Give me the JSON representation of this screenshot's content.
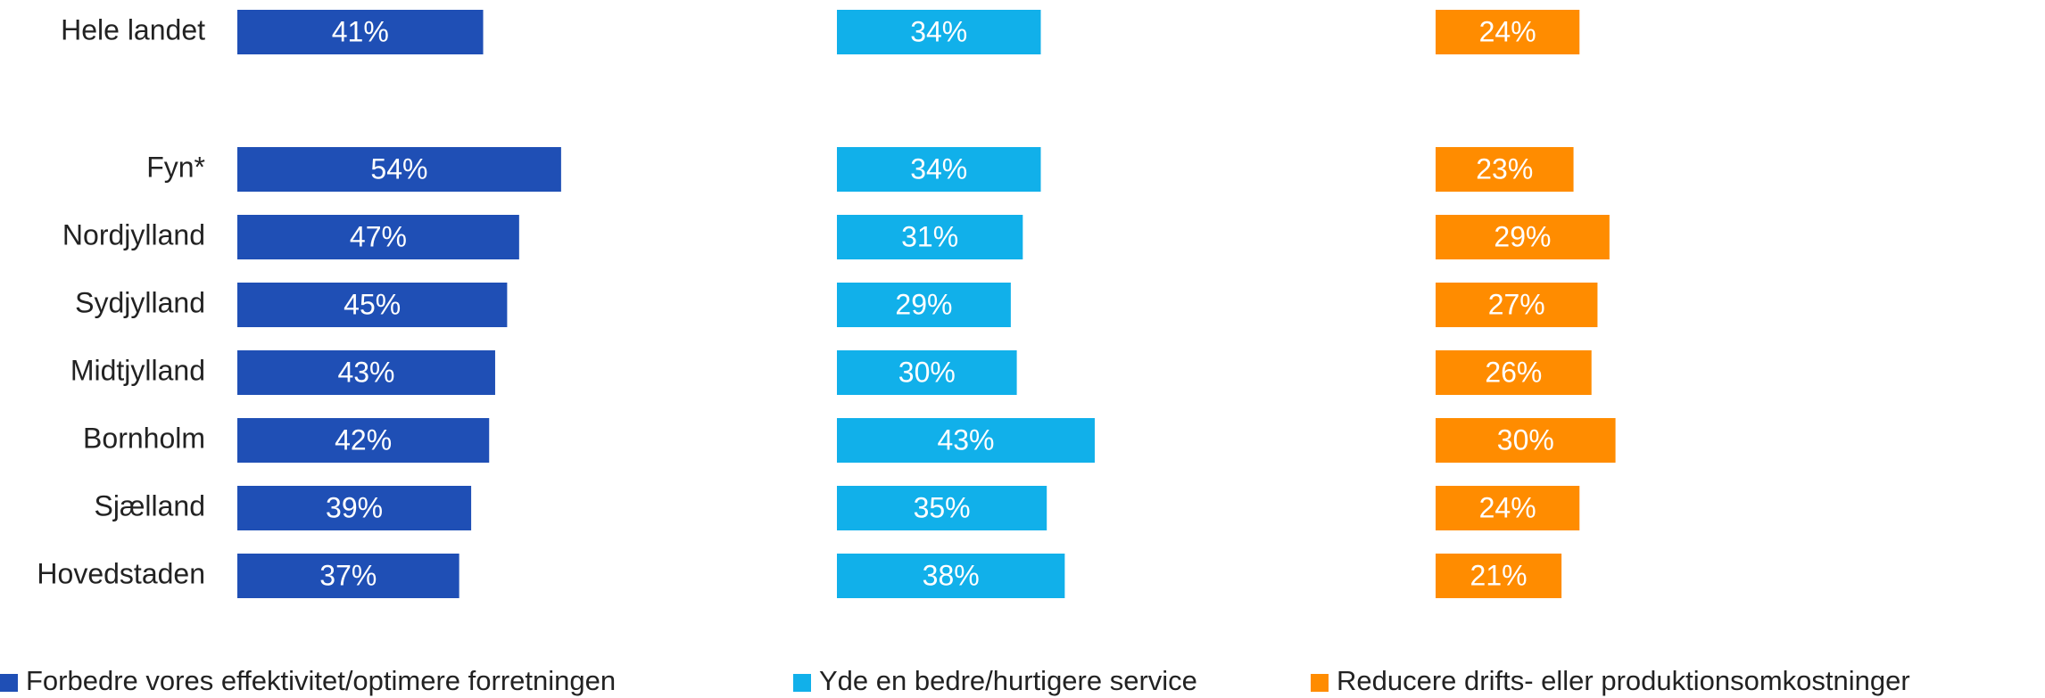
{
  "chart_data": {
    "type": "bar",
    "orientation": "horizontal",
    "categories": [
      "Hele landet",
      "Fyn*",
      "Nordjylland",
      "Sydjylland",
      "Midtjylland",
      "Bornholm",
      "Sjælland",
      "Hovedstaden"
    ],
    "xlim": [
      0,
      100
    ],
    "series": [
      {
        "name": "Forbedre vores effektivitet/optimere forretningen",
        "color": "#1f4fb5",
        "values": [
          41,
          54,
          47,
          45,
          43,
          42,
          39,
          37
        ],
        "value_labels": [
          "41%",
          "54%",
          "47%",
          "45%",
          "43%",
          "42%",
          "39%",
          "37%"
        ]
      },
      {
        "name": "Yde en bedre/hurtigere service",
        "color": "#11b0ea",
        "values": [
          34,
          34,
          31,
          29,
          30,
          43,
          35,
          38
        ],
        "value_labels": [
          "34%",
          "34%",
          "31%",
          "29%",
          "30%",
          "43%",
          "35%",
          "38%"
        ]
      },
      {
        "name": "Reducere drifts- eller produktionsomkostninger",
        "color": "#ff8c00",
        "values": [
          24,
          23,
          29,
          27,
          26,
          30,
          24,
          21
        ],
        "value_labels": [
          "24%",
          "23%",
          "29%",
          "27%",
          "26%",
          "30%",
          "24%",
          "21%"
        ]
      }
    ]
  }
}
